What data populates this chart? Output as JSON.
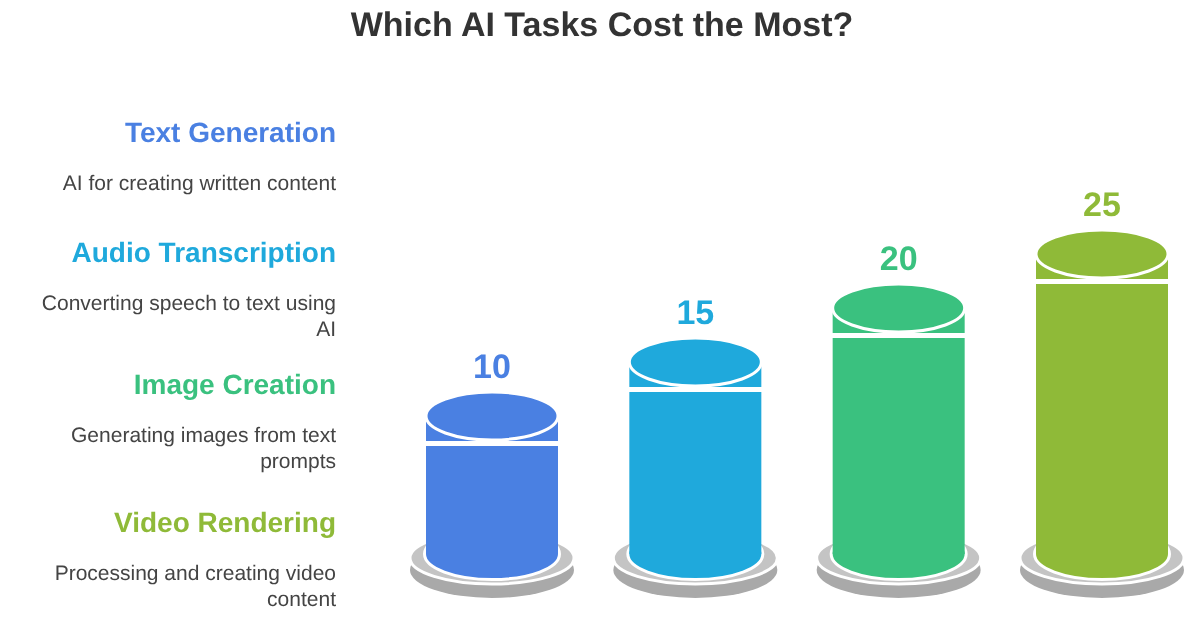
{
  "chart_data": {
    "type": "bar",
    "title": "Which AI Tasks Cost the Most?",
    "categories": [
      null,
      null,
      null,
      null
    ],
    "values": [
      10,
      15,
      20,
      25
    ],
    "colors": [
      "#4a80e2",
      "#1fa9dc",
      "#3ac17f",
      "#8fba38"
    ],
    "data_labels": true,
    "annotations": [
      "Text Generation",
      "AI for creating written content",
      "Audio Transcription",
      "Converting speech to text using AI",
      "Image Creation",
      "Generating images from text prompts",
      "Video Rendering",
      "Processing and creating video content"
    ]
  }
}
